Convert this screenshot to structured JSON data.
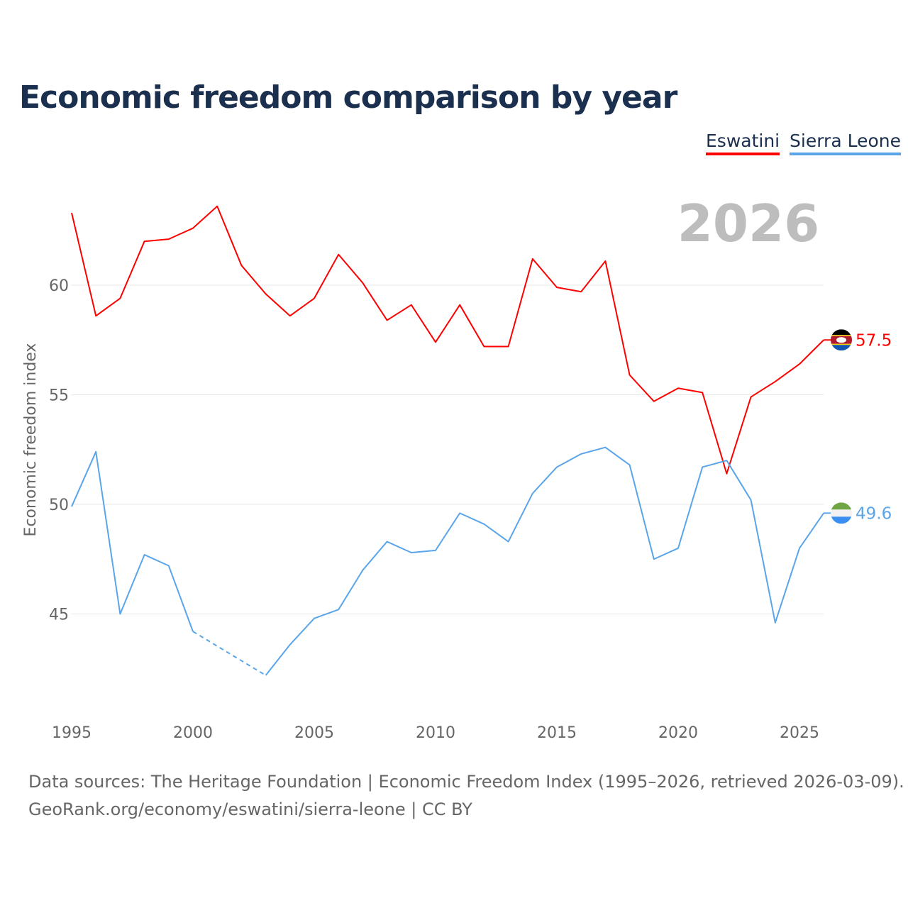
{
  "title": "Economic freedom comparison by year",
  "legend": [
    {
      "label": "Eswatini",
      "color": "#ff0000"
    },
    {
      "label": "Sierra Leone",
      "color": "#5aa5ea"
    }
  ],
  "source_line1": "Data sources: The Heritage Foundation | Economic Freedom Index (1995–2026, retrieved 2026-03-09).",
  "source_line2": "GeoRank.org/economy/eswatini/sierra-leone | CC BY",
  "chart_data": {
    "type": "line",
    "title": "Economic freedom comparison by year",
    "year_label": "2026",
    "ylabel": "Economic freedom index",
    "xlabel": "",
    "x": [
      1995,
      1996,
      1997,
      1998,
      1999,
      2000,
      2001,
      2002,
      2003,
      2004,
      2005,
      2006,
      2007,
      2008,
      2009,
      2010,
      2011,
      2012,
      2013,
      2014,
      2015,
      2016,
      2017,
      2018,
      2019,
      2020,
      2021,
      2022,
      2023,
      2024,
      2025,
      2026
    ],
    "xticks": [
      "1995",
      "2000",
      "2005",
      "2010",
      "2015",
      "2020",
      "2025"
    ],
    "yticks": [
      "45",
      "50",
      "55",
      "60"
    ],
    "ylim": [
      40.5,
      65
    ],
    "grid": true,
    "series": [
      {
        "name": "Eswatini",
        "color": "#ff0000",
        "end_label": "57.5",
        "values": [
          63.3,
          58.6,
          59.4,
          62.0,
          62.1,
          62.6,
          63.6,
          60.9,
          59.6,
          58.6,
          59.4,
          61.4,
          60.1,
          58.4,
          59.1,
          57.4,
          59.1,
          57.2,
          57.2,
          61.2,
          59.9,
          59.7,
          61.1,
          55.9,
          54.7,
          55.3,
          55.1,
          51.4,
          54.9,
          55.6,
          56.4,
          57.5
        ]
      },
      {
        "name": "Sierra Leone",
        "color": "#5aa5ea",
        "end_label": "49.6",
        "values": [
          49.9,
          52.4,
          45.0,
          47.7,
          47.2,
          44.2,
          null,
          null,
          42.2,
          43.6,
          44.8,
          45.2,
          47.0,
          48.3,
          47.8,
          47.9,
          49.6,
          49.1,
          48.3,
          50.5,
          51.7,
          52.3,
          52.6,
          51.8,
          47.5,
          48.0,
          51.7,
          52.0,
          50.2,
          44.6,
          48.0,
          49.6
        ]
      }
    ]
  }
}
